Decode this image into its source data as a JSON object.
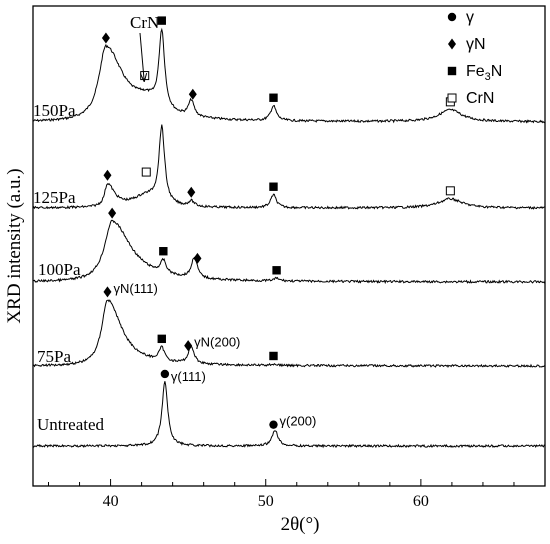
{
  "chart_data": {
    "type": "line",
    "xlabel": "2θ(°)",
    "ylabel": "XRD intensity (a.u.)",
    "xlim": [
      35,
      68
    ],
    "xticks": [
      40,
      50,
      60
    ],
    "xtick_labels": [
      "40",
      "50",
      "60"
    ],
    "yticks_shown": false,
    "legend": {
      "placement": "top-right",
      "entries": [
        {
          "marker": "circle",
          "label": "γ"
        },
        {
          "marker": "diamond",
          "label": "γN"
        },
        {
          "marker": "filled-square",
          "label": "Fe₃N"
        },
        {
          "marker": "open-square",
          "label": "CrN"
        }
      ]
    },
    "series": [
      {
        "name": "150Pa",
        "peaks": [
          [
            39.7,
            1.0
          ],
          [
            42.3,
            0.18
          ],
          [
            43.3,
            1.05
          ],
          [
            45.2,
            0.22
          ],
          [
            50.5,
            0.2
          ],
          [
            61.9,
            0.16
          ]
        ],
        "markers": [
          {
            "x": 39.7,
            "marker": "diamond"
          },
          {
            "x": 42.2,
            "marker": "open-square"
          },
          {
            "x": 43.3,
            "marker": "filled-square"
          },
          {
            "x": 45.3,
            "marker": "diamond"
          },
          {
            "x": 50.5,
            "marker": "filled-square"
          },
          {
            "x": 61.9,
            "marker": "open-square"
          }
        ]
      },
      {
        "name": "125Pa",
        "peaks": [
          [
            39.8,
            0.3
          ],
          [
            42.3,
            0.15
          ],
          [
            43.3,
            1.0
          ],
          [
            45.2,
            0.07
          ],
          [
            50.5,
            0.17
          ],
          [
            61.9,
            0.12
          ]
        ],
        "markers": [
          {
            "x": 39.8,
            "marker": "diamond"
          },
          {
            "x": 42.3,
            "marker": "open-square"
          },
          {
            "x": 45.2,
            "marker": "diamond"
          },
          {
            "x": 50.5,
            "marker": "filled-square"
          },
          {
            "x": 61.9,
            "marker": "open-square"
          }
        ]
      },
      {
        "name": "100Pa",
        "peaks": [
          [
            40.1,
            0.95
          ],
          [
            43.4,
            0.2
          ],
          [
            45.4,
            0.33
          ],
          [
            50.7,
            0.04
          ]
        ],
        "markers": [
          {
            "x": 40.1,
            "marker": "diamond"
          },
          {
            "x": 43.4,
            "marker": "filled-square"
          },
          {
            "x": 45.6,
            "marker": "diamond"
          },
          {
            "x": 50.7,
            "marker": "filled-square"
          }
        ]
      },
      {
        "name": "75Pa",
        "peaks": [
          [
            39.8,
            1.0
          ],
          [
            43.3,
            0.2
          ],
          [
            45.2,
            0.26
          ],
          [
            50.5,
            0.02
          ]
        ],
        "markers": [
          {
            "x": 39.8,
            "marker": "diamond"
          },
          {
            "x": 43.3,
            "marker": "filled-square"
          },
          {
            "x": 45.0,
            "marker": "diamond"
          },
          {
            "x": 50.5,
            "marker": "filled-square"
          }
        ]
      },
      {
        "name": "Untreated",
        "peaks": [
          [
            43.5,
            1.0
          ],
          [
            50.6,
            0.25
          ]
        ],
        "markers": [
          {
            "x": 43.5,
            "marker": "circle"
          },
          {
            "x": 50.5,
            "marker": "circle"
          }
        ]
      }
    ],
    "annotations": [
      {
        "text": "CrN",
        "target_x": 42.3,
        "target_series": "150Pa",
        "arrow": true
      },
      {
        "text": "γN(111)",
        "x": 39.8,
        "series": "75Pa"
      },
      {
        "text": "γN(200)",
        "x": 45.0,
        "series": "75Pa"
      },
      {
        "text": "γ(111)",
        "x": 43.5,
        "series": "Untreated"
      },
      {
        "text": "γ(200)",
        "x": 50.5,
        "series": "Untreated"
      }
    ]
  }
}
